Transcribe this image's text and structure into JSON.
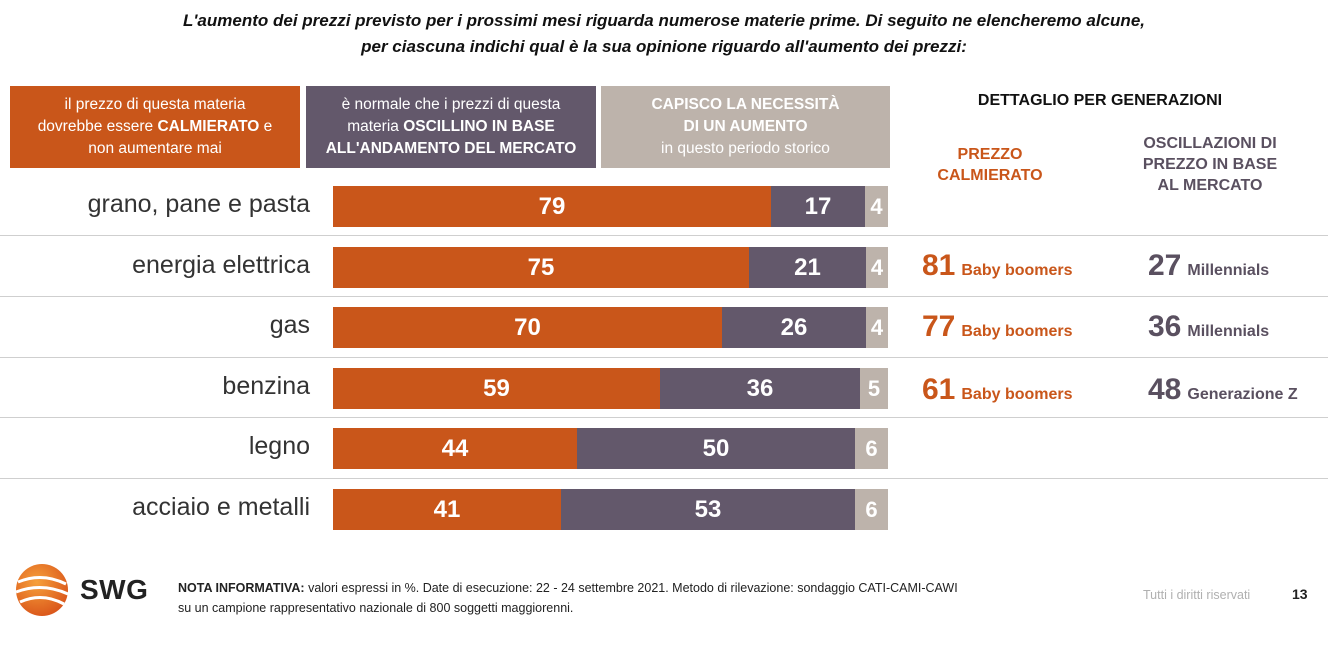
{
  "intro": {
    "line1": "L'aumento dei prezzi previsto per i prossimi mesi riguarda numerose materie prime. Di seguito ne elencheremo alcune,",
    "line2": "per ciascuna indichi qual è la sua opinione riguardo all'aumento dei prezzi:"
  },
  "legend": {
    "calmierato": {
      "pre": "il prezzo di questa materia",
      "mid_a": "dovrebbe essere ",
      "mid_b": "CALMIERATO",
      "mid_c": " e",
      "post": "non aumentare mai"
    },
    "oscillino": {
      "l1": "è normale che i prezzi di questa",
      "l2a": "materia ",
      "l2b": "OSCILLINO IN BASE",
      "l3": "ALL'ANDAMENTO DEL MERCATO"
    },
    "necessita": {
      "l1": "CAPISCO LA NECESSITÀ",
      "l2": "DI UN AUMENTO",
      "l3": "in questo periodo storico"
    }
  },
  "generations": {
    "header": "DETTAGLIO PER GENERAZIONI",
    "col_calmierato": [
      "PREZZO",
      "CALMIERATO"
    ],
    "col_oscillazioni": [
      "OSCILLAZIONI DI",
      "PREZZO IN BASE",
      "AL MERCATO"
    ],
    "rows": [
      {
        "calm_value": "81",
        "calm_gen": "Baby boomers",
        "osc_value": "27",
        "osc_gen": "Millennials"
      },
      {
        "calm_value": "77",
        "calm_gen": "Baby boomers",
        "osc_value": "36",
        "osc_gen": "Millennials"
      },
      {
        "calm_value": "61",
        "calm_gen": "Baby boomers",
        "osc_value": "48",
        "osc_gen": "Generazione Z"
      }
    ]
  },
  "chart_data": {
    "type": "bar",
    "stacked": true,
    "orientation": "horizontal",
    "categories": [
      "grano, pane e pasta",
      "energia elettrica",
      "gas",
      "benzina",
      "legno",
      "acciaio e metalli"
    ],
    "series": [
      {
        "values": [
          79,
          75,
          70,
          59,
          44,
          41
        ],
        "color": "#c9561a"
      },
      {
        "values": [
          17,
          21,
          26,
          36,
          50,
          53
        ],
        "color": "#63586b"
      },
      {
        "values": [
          4,
          4,
          4,
          5,
          6,
          6
        ],
        "color": "#bdb3ab"
      }
    ]
  },
  "footer": {
    "logo_text": "SWG",
    "note_label": "NOTA INFORMATIVA:",
    "note_line1": " valori espressi in %. Date di esecuzione: 22 - 24 settembre 2021. Metodo di rilevazione: sondaggio CATI-CAMI-CAWI",
    "note_line2": "su un campione rappresentativo nazionale di 800 soggetti maggiorenni.",
    "rights": "Tutti i diritti riservati",
    "page_number": "13"
  },
  "colors": {
    "calmierato": "#c9561a",
    "oscillino": "#63586b",
    "necessita": "#bdb3ab"
  }
}
